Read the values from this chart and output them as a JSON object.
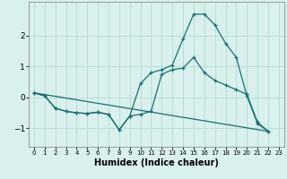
{
  "title": "",
  "xlabel": "Humidex (Indice chaleur)",
  "bg_color": "#d9f0ed",
  "grid_color": "#b8ddd9",
  "line_color": "#1a7070",
  "xlim": [
    -0.5,
    23.5
  ],
  "ylim": [
    -1.6,
    3.1
  ],
  "xticks": [
    0,
    1,
    2,
    3,
    4,
    5,
    6,
    7,
    8,
    9,
    10,
    11,
    12,
    13,
    14,
    15,
    16,
    17,
    18,
    19,
    20,
    21,
    22,
    23
  ],
  "yticks": [
    -1,
    0,
    1,
    2
  ],
  "line2_x": [
    0,
    1,
    2,
    3,
    4,
    5,
    6,
    7,
    8,
    9,
    10,
    11,
    12,
    13,
    14,
    15,
    16,
    17,
    18,
    19,
    20,
    21,
    22
  ],
  "line2_y": [
    0.15,
    0.05,
    -0.35,
    -0.45,
    -0.5,
    -0.52,
    -0.48,
    -0.55,
    -1.05,
    -0.6,
    0.45,
    0.8,
    0.9,
    1.05,
    1.9,
    2.7,
    2.7,
    2.35,
    1.75,
    1.3,
    0.05,
    -0.85,
    -1.1
  ],
  "line1_x": [
    0,
    1,
    2,
    3,
    4,
    5,
    6,
    7,
    8,
    9,
    10,
    11,
    12,
    13,
    14,
    15,
    16,
    17,
    18,
    19,
    20,
    21,
    22
  ],
  "line1_y": [
    0.15,
    0.05,
    -0.35,
    -0.45,
    -0.5,
    -0.52,
    -0.48,
    -0.55,
    -1.05,
    -0.6,
    -0.55,
    -0.45,
    0.75,
    0.9,
    0.95,
    1.3,
    0.8,
    0.55,
    0.4,
    0.25,
    0.1,
    -0.8,
    -1.1
  ],
  "line3_x": [
    0,
    22
  ],
  "line3_y": [
    0.15,
    -1.1
  ]
}
